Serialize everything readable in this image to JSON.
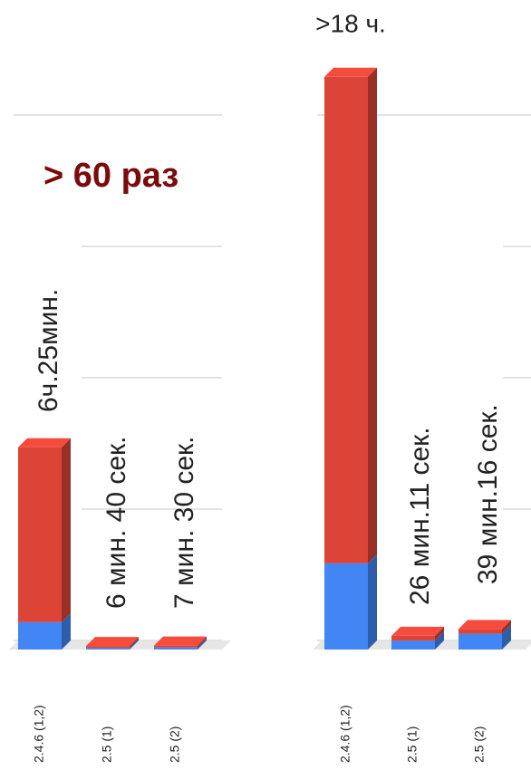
{
  "chart_data": [
    {
      "type": "bar",
      "stacked": true,
      "categories": [
        "2.4.6 (1,2)",
        "2.5 (1)",
        "2.5 (2)"
      ],
      "series": [
        {
          "color": "#4285f4",
          "values": [
            52,
            3,
            4
          ]
        },
        {
          "color": "#db4437",
          "values": [
            333,
            3.67,
            3.5
          ]
        }
      ],
      "annotations": [
        "6ч.25мин.",
        "6 мин. 40 сек.",
        "7 мин. 30 сек."
      ],
      "note": "> 60 раз",
      "ylim": [
        0,
        1200
      ],
      "yticks": [
        0,
        250,
        500,
        750,
        1000
      ],
      "grid": true
    },
    {
      "type": "bar",
      "stacked": true,
      "categories": [
        "2.4.6 (1,2)",
        "2.5 (1)",
        "2.5 (2)"
      ],
      "series": [
        {
          "color": "#4285f4",
          "values": [
            164,
            17,
            30
          ]
        },
        {
          "color": "#db4437",
          "values": [
            926,
            9,
            9
          ]
        }
      ],
      "annotations": [
        ">18 ч.",
        "26 мин.11 сек.",
        "39 мин.16 сек."
      ],
      "ylim": [
        0,
        1200
      ],
      "yticks": [
        0,
        250,
        500,
        750,
        1000
      ],
      "grid": true
    }
  ]
}
